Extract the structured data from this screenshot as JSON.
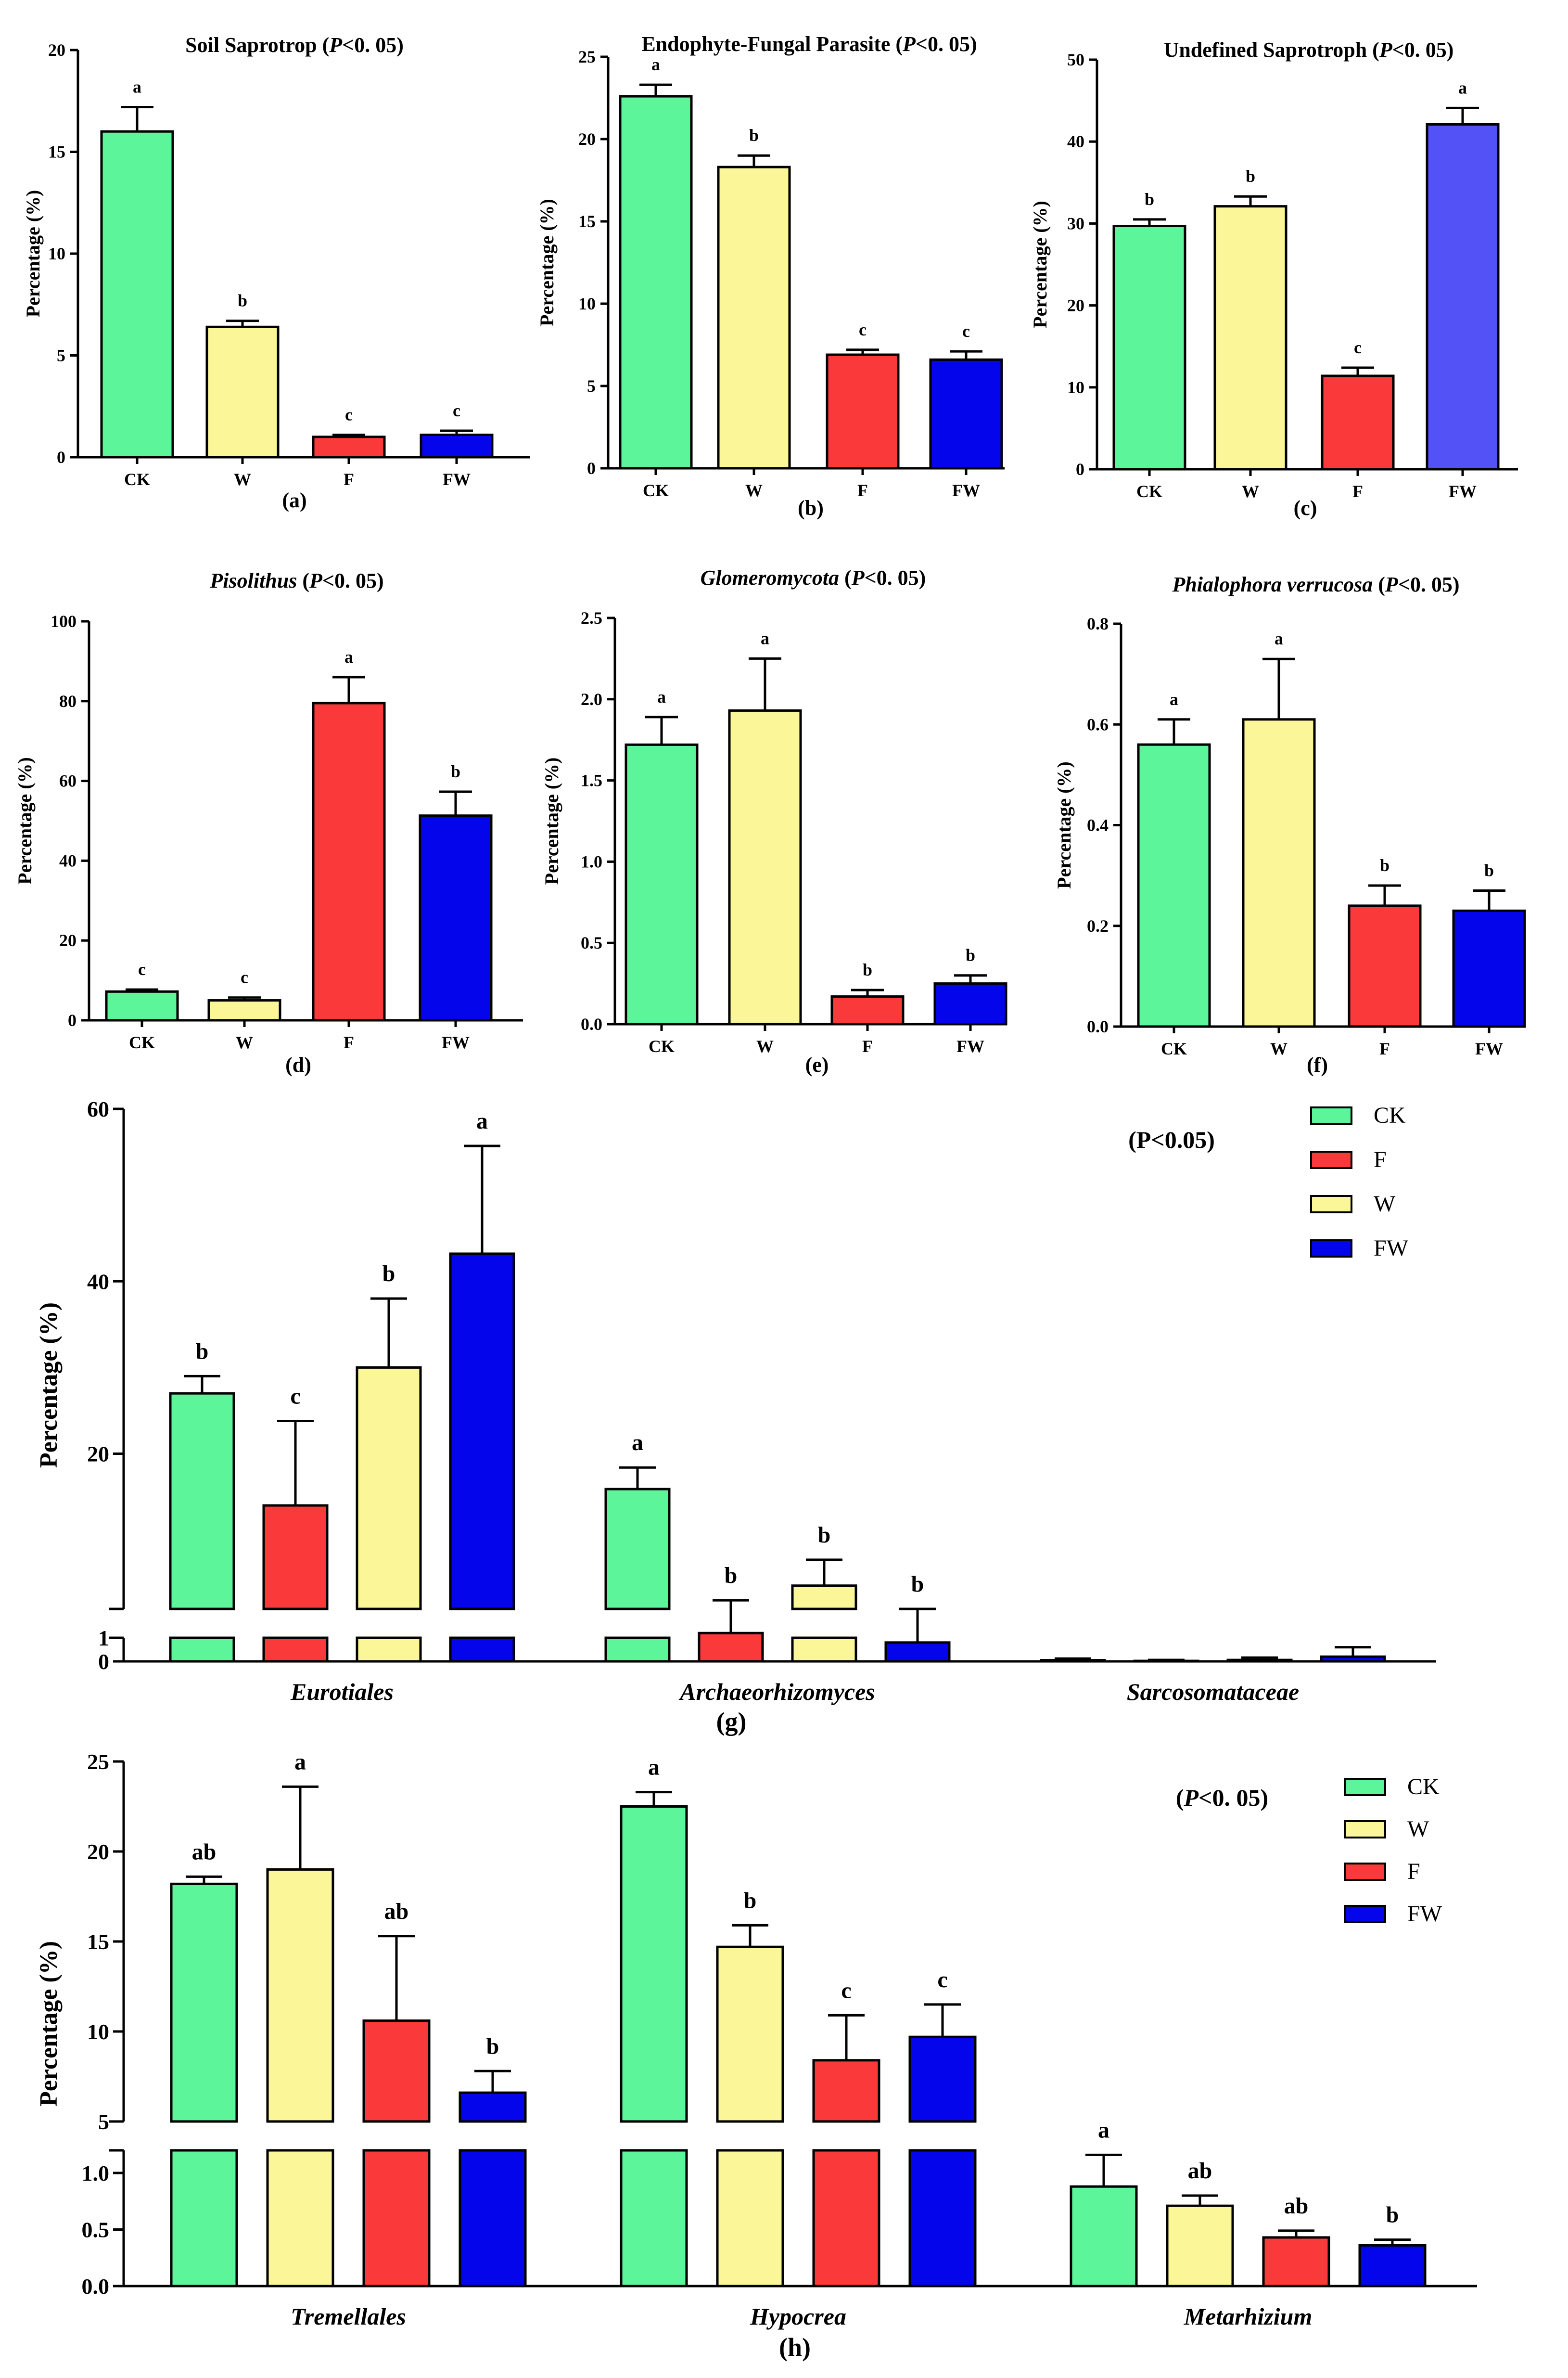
{
  "colors": {
    "CK": "#5cf59a",
    "W": "#fbf799",
    "F": "#fa3a3a",
    "FW": "#0505ec",
    "FW_c": "#5252f6"
  },
  "chart_data": [
    {
      "id": "a",
      "type": "bar",
      "panel_label": "(a)",
      "title_pre": "Soil Saprotrop (",
      "title_italic": "P",
      "title_post": "<0. 05)",
      "ylabel": "Percentage (%)",
      "ylim": [
        0,
        20
      ],
      "yticks": [
        "0",
        "5",
        "10",
        "15",
        "20"
      ],
      "categories": [
        "CK",
        "W",
        "F",
        "FW"
      ],
      "values": [
        16.0,
        6.4,
        1.0,
        1.1
      ],
      "errors": [
        1.2,
        0.3,
        0.1,
        0.2
      ],
      "letters": [
        "a",
        "b",
        "c",
        "c"
      ]
    },
    {
      "id": "b",
      "type": "bar",
      "panel_label": "(b)",
      "title_pre": "Endophyte-Fungal Parasite (",
      "title_italic": "P",
      "title_post": "<0. 05)",
      "ylabel": "Percentage (%)",
      "ylim": [
        0,
        25
      ],
      "yticks": [
        "0",
        "5",
        "10",
        "15",
        "20",
        "25"
      ],
      "categories": [
        "CK",
        "W",
        "F",
        "FW"
      ],
      "values": [
        22.6,
        18.3,
        6.9,
        6.6
      ],
      "errors": [
        0.7,
        0.7,
        0.3,
        0.5
      ],
      "letters": [
        "a",
        "b",
        "c",
        "c"
      ]
    },
    {
      "id": "c",
      "type": "bar",
      "panel_label": "(c)",
      "title_pre": "Undefined Saprotroph  (",
      "title_italic": "P",
      "title_post": "<0. 05)",
      "ylabel": "Percentage (%)",
      "ylim": [
        0,
        50
      ],
      "yticks": [
        "0",
        "10",
        "20",
        "30",
        "40",
        "50"
      ],
      "categories": [
        "CK",
        "W",
        "F",
        "FW"
      ],
      "values": [
        29.7,
        32.1,
        11.4,
        42.1
      ],
      "errors": [
        0.8,
        1.2,
        1.0,
        2.0
      ],
      "letters": [
        "b",
        "b",
        "c",
        "a"
      ]
    },
    {
      "id": "d",
      "type": "bar",
      "panel_label": "(d)",
      "title_italic": "Pisolithus",
      "title_pre": " (",
      "title_italic2": "P",
      "title_post": "<0. 05)",
      "ylabel": "Percentage (%)",
      "ylim": [
        0,
        100
      ],
      "yticks": [
        "0",
        "20",
        "40",
        "60",
        "80",
        "100"
      ],
      "categories": [
        "CK",
        "W",
        "F",
        "FW"
      ],
      "values": [
        7.2,
        5.0,
        79.5,
        51.3
      ],
      "errors": [
        0.5,
        0.7,
        6.5,
        6.0
      ],
      "letters": [
        "c",
        "c",
        "a",
        "b"
      ]
    },
    {
      "id": "e",
      "type": "bar",
      "panel_label": "(e)",
      "title_italic": "Glomeromycota",
      "title_pre": " (",
      "title_italic2": "P",
      "title_post": "<0. 05)",
      "ylabel": "Percentage (%)",
      "ylim": [
        0,
        2.5
      ],
      "yticks": [
        "0.0",
        "0.5",
        "1.0",
        "1.5",
        "2.0",
        "2.5"
      ],
      "categories": [
        "CK",
        "W",
        "F",
        "FW"
      ],
      "values": [
        1.72,
        1.93,
        0.17,
        0.25
      ],
      "errors": [
        0.17,
        0.32,
        0.04,
        0.05
      ],
      "letters": [
        "a",
        "a",
        "b",
        "b"
      ]
    },
    {
      "id": "f",
      "type": "bar",
      "panel_label": "(f)",
      "title_italic": "Phialophora verrucosa",
      "title_pre": " (",
      "title_italic2": "P",
      "title_post": "<0. 05)",
      "ylabel": "Percentage  (%)",
      "ylim": [
        0,
        0.8
      ],
      "yticks": [
        "0.0",
        "0.2",
        "0.4",
        "0.6",
        "0.8"
      ],
      "categories": [
        "CK",
        "W",
        "F",
        "FW"
      ],
      "values": [
        0.56,
        0.61,
        0.24,
        0.23
      ],
      "errors": [
        0.05,
        0.12,
        0.04,
        0.04
      ],
      "letters": [
        "a",
        "a",
        "b",
        "b"
      ]
    },
    {
      "id": "g",
      "type": "bar",
      "panel_label": "(g)",
      "note": "(P<0.05)",
      "ylabel": "Percentage (%)",
      "yticks_upper": [
        "20",
        "40",
        "60"
      ],
      "yticks_lower": [
        "0",
        "1"
      ],
      "axis_break": [
        1,
        2
      ],
      "legend": [
        "CK",
        "F",
        "W",
        "FW"
      ],
      "categories": [
        "Eurotiales",
        "Archaeorhizomyces",
        "Sarcosomataceae"
      ],
      "series": [
        {
          "name": "CK",
          "values": [
            27.0,
            15.9,
            0.05
          ],
          "errors": [
            2.0,
            2.5,
            0.07
          ],
          "letters": [
            "b",
            "a",
            ""
          ]
        },
        {
          "name": "F",
          "values": [
            14.0,
            1.2,
            0.02
          ],
          "errors": [
            9.8,
            1.8,
            0.04
          ],
          "letters": [
            "c",
            "b",
            ""
          ]
        },
        {
          "name": "W",
          "values": [
            30.0,
            4.7,
            0.06
          ],
          "errors": [
            8.0,
            3.0,
            0.1
          ],
          "letters": [
            "b",
            "b",
            ""
          ]
        },
        {
          "name": "FW",
          "values": [
            43.2,
            0.8,
            0.2
          ],
          "errors": [
            12.5,
            0.8,
            0.4
          ],
          "letters": [
            "a",
            "b",
            ""
          ]
        }
      ]
    },
    {
      "id": "h",
      "type": "bar",
      "panel_label": "(h)",
      "note_pre": "(",
      "note_italic": "P",
      "note_post": "<0. 05)",
      "ylabel": "Percentage (%)",
      "yticks_upper": [
        "5",
        "10",
        "15",
        "20",
        "25"
      ],
      "yticks_lower": [
        "0.0",
        "0.5",
        "1.0"
      ],
      "axis_break": [
        1.2,
        5
      ],
      "legend": [
        "CK",
        "W",
        "F",
        "FW"
      ],
      "categories": [
        "Tremellales",
        "Hypocrea",
        "Metarhizium"
      ],
      "series": [
        {
          "name": "CK",
          "values": [
            18.2,
            22.5,
            0.88
          ],
          "errors": [
            0.4,
            0.8,
            0.28
          ],
          "letters": [
            "ab",
            "a",
            "a"
          ]
        },
        {
          "name": "W",
          "values": [
            19.0,
            14.7,
            0.71
          ],
          "errors": [
            4.6,
            1.2,
            0.09
          ],
          "letters": [
            "a",
            "b",
            "ab"
          ]
        },
        {
          "name": "F",
          "values": [
            10.6,
            8.4,
            0.43
          ],
          "errors": [
            4.7,
            2.5,
            0.06
          ],
          "letters": [
            "ab",
            "c",
            "ab"
          ]
        },
        {
          "name": "FW",
          "values": [
            6.6,
            9.7,
            0.36
          ],
          "errors": [
            1.2,
            1.8,
            0.05
          ],
          "letters": [
            "b",
            "c",
            "b"
          ]
        }
      ]
    }
  ]
}
